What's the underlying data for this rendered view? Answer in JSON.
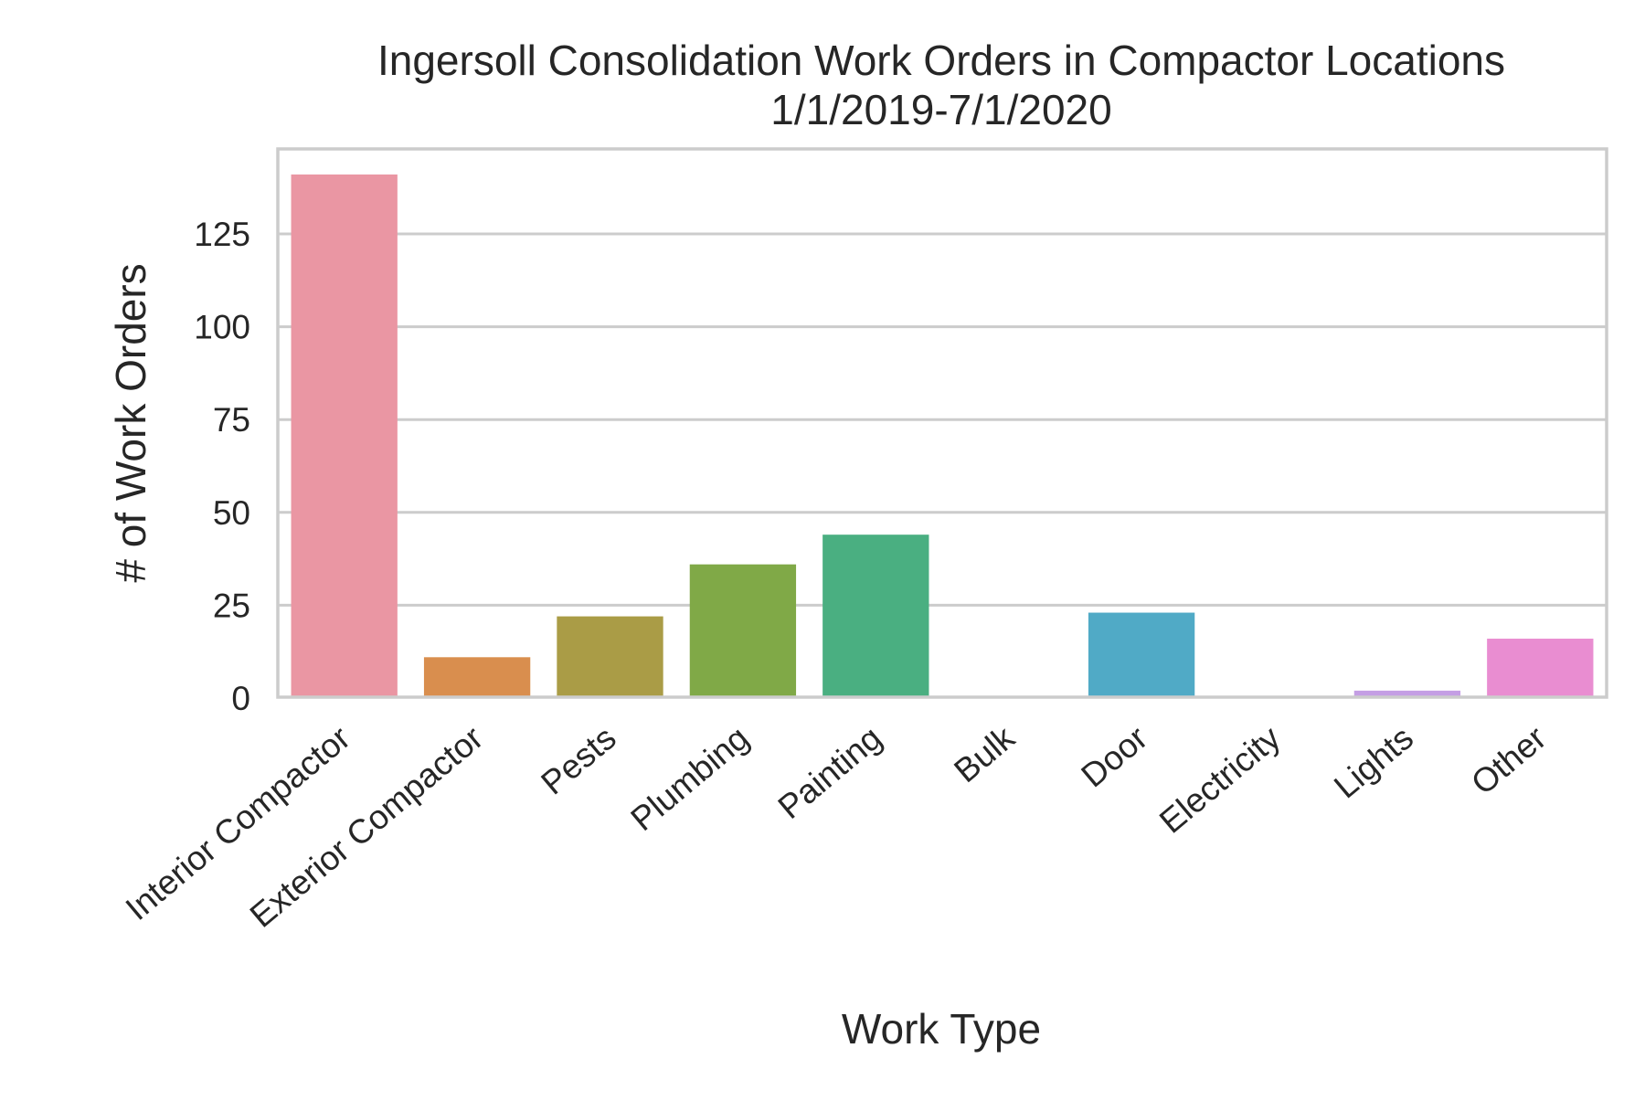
{
  "chart_data": {
    "type": "bar",
    "title": "Ingersoll Consolidation Work Orders in Compactor Locations",
    "subtitle": "1/1/2019-7/1/2020",
    "xlabel": "Work Type",
    "ylabel": "# of Work Orders",
    "categories": [
      "Interior Compactor",
      "Exterior Compactor",
      "Pests",
      "Plumbing",
      "Painting",
      "Bulk",
      "Door",
      "Electricity",
      "Lights",
      "Other"
    ],
    "values": [
      141,
      11,
      22,
      36,
      44,
      0,
      23,
      0,
      2,
      16
    ],
    "colors": [
      "#ea96a3",
      "#d98e4e",
      "#aa9c46",
      "#80a947",
      "#4aaf81",
      "#4bac9e",
      "#50aac6",
      "#8fa3de",
      "#c49ee4",
      "#e98dd1"
    ],
    "yticks": [
      0,
      25,
      50,
      75,
      100,
      125
    ],
    "ylim": [
      0,
      148
    ],
    "grid": true,
    "legend": "none"
  }
}
